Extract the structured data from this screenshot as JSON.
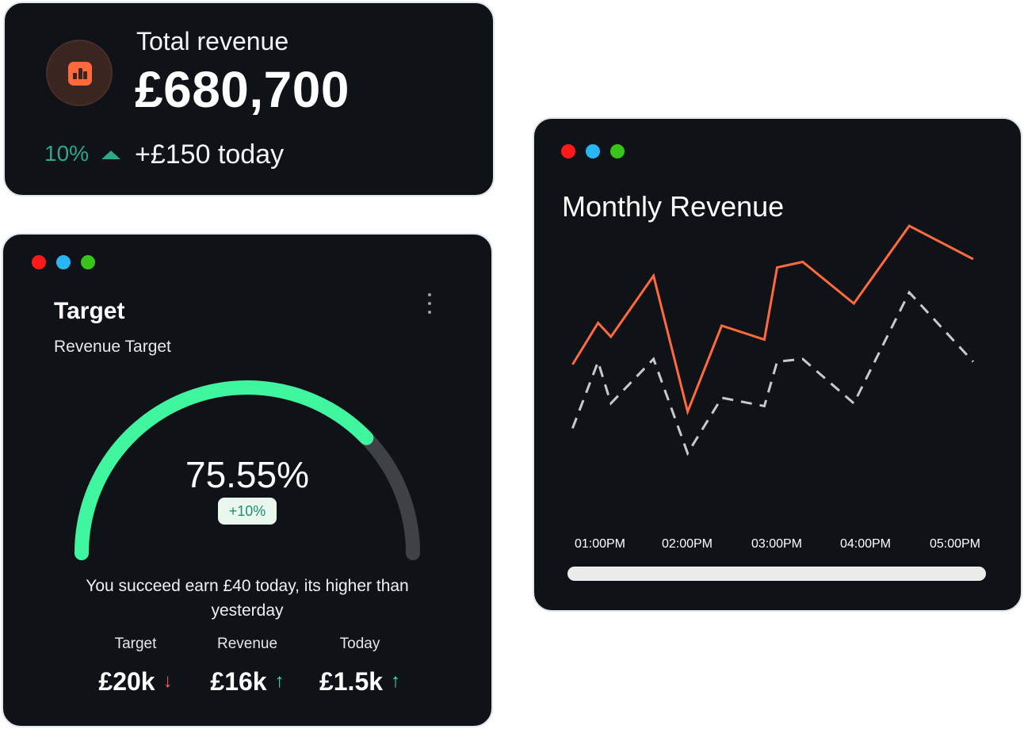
{
  "total_card": {
    "label": "Total revenue",
    "value": "£680,700",
    "change_pct": "10%",
    "today": "+£150 today",
    "icon": "bar-chart-icon",
    "accent": "#ff6a3d",
    "up_color": "#2ea889"
  },
  "target_card": {
    "title": "Target",
    "subtitle": "Revenue Target",
    "menu_icon": "more-vertical-icon",
    "progress_fraction": 0.7555,
    "percent_text": "75.55%",
    "badge": "+10%",
    "message": "You succeed earn £40 today, its higher than yesterday",
    "gauge_color": "#3ff59d",
    "track_color": "#3f4147",
    "stats": [
      {
        "label": "Target",
        "value": "£20k",
        "arrow": "↓",
        "trend": "down"
      },
      {
        "label": "Revenue",
        "value": "£16k",
        "arrow": "↑",
        "trend": "up"
      },
      {
        "label": "Today",
        "value": "£1.5k",
        "arrow": "↑",
        "trend": "up"
      }
    ]
  },
  "monthly_card": {
    "title": "Monthly Revenue"
  },
  "chart_data": {
    "type": "line",
    "title": "Monthly Revenue",
    "xlabel": "",
    "ylabel": "",
    "x_ticks": [
      "01:00PM",
      "02:00PM",
      "03:00PM",
      "04:00PM",
      "05:00PM"
    ],
    "x_range": [
      0.7,
      5.6
    ],
    "ylim": [
      0,
      100
    ],
    "grid": false,
    "legend": "none",
    "series": [
      {
        "style": "solid",
        "color": "#ff6a3d",
        "x": [
          0.75,
          1.05,
          1.2,
          1.7,
          2.1,
          2.5,
          3.0,
          3.15,
          3.45,
          4.05,
          4.7,
          5.45
        ],
        "y": [
          48,
          63,
          58,
          80,
          31,
          62,
          57,
          83,
          85,
          70,
          98,
          86
        ]
      },
      {
        "style": "dashed",
        "color": "#c7c9cc",
        "x": [
          0.75,
          1.05,
          1.2,
          1.7,
          2.1,
          2.5,
          3.0,
          3.15,
          3.45,
          4.05,
          4.7,
          5.45
        ],
        "y": [
          25,
          49,
          34,
          50,
          16,
          36,
          33,
          49,
          50,
          34,
          74,
          49
        ]
      }
    ]
  }
}
